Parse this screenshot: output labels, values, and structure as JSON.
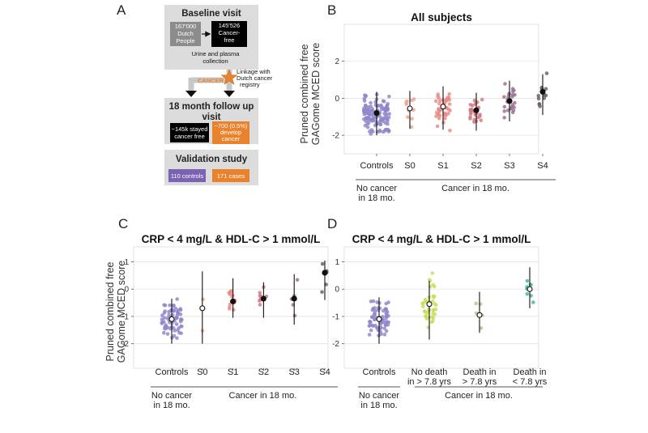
{
  "panel_letters": {
    "a": "A",
    "b": "B",
    "c": "C",
    "d": "D"
  },
  "flowchart": {
    "baseline_title": "Baseline visit",
    "dutch_people": [
      "167'000",
      "Dutch",
      "People"
    ],
    "cancer_free": [
      "145'526",
      "Cancer-",
      "free"
    ],
    "collection": [
      "Urine and plasma",
      "collection"
    ],
    "cancer_label": "CANCER",
    "linkage": [
      "Linkage with",
      "Dutch cancer",
      "registry"
    ],
    "followup_title": [
      "18 month follow up",
      "visit"
    ],
    "stayed_free": [
      "~145k stayed",
      "cancer free"
    ],
    "develop_cancer": [
      "~700 (0.5%)",
      "develop",
      "cancer"
    ],
    "validation_title": "Validation study",
    "controls_box": "110 controls",
    "cases_box": "171 cases",
    "colors": {
      "grey_box": "#d9d9d9",
      "black_box": "#000000",
      "orange": "#e8822d",
      "purple": "#7b62b3",
      "star": "#e8822d"
    }
  },
  "y_axis_label": [
    "Pruned combined free",
    "GAGome MCED score"
  ],
  "chart_data": [
    {
      "panel": "B",
      "type": "scatter",
      "title": "All subjects",
      "ylim": [
        -3,
        4
      ],
      "yticks": [
        -2,
        0,
        2
      ],
      "ylabel": "Pruned combined free GAGome MCED score",
      "categories": [
        "Controls",
        "S0",
        "S1",
        "S2",
        "S3",
        "S4"
      ],
      "colors": [
        "#8f86c9",
        "#f1a48f",
        "#ec8a86",
        "#ce7a80",
        "#9a7190",
        "#6b5a6b"
      ],
      "medians": [
        -0.8,
        -0.55,
        -0.45,
        -0.65,
        -0.15,
        0.35
      ],
      "iqr_low": [
        -2.0,
        -1.65,
        -1.7,
        -1.75,
        -1.25,
        -0.9
      ],
      "iqr_high": [
        0.35,
        0.4,
        0.65,
        0.3,
        0.95,
        1.3
      ],
      "open_median": [
        false,
        true,
        true,
        false,
        false,
        false
      ],
      "groups": [
        {
          "label": "No cancer in 18 mo.",
          "lines": [
            "No cancer",
            "in 18 mo."
          ],
          "span": [
            0,
            0
          ]
        },
        {
          "label": "Cancer in 18 mo.",
          "lines": [
            "Cancer in 18 mo."
          ],
          "span": [
            1,
            5
          ]
        }
      ]
    },
    {
      "panel": "C",
      "type": "scatter",
      "title": "CRP < 4 mg/L & HDL-C > 1 mmol/L",
      "ylim": [
        -2.9,
        1.55
      ],
      "yticks": [
        -2,
        -1,
        0,
        1
      ],
      "ylabel": "Pruned combined free GAGome MCED score",
      "categories": [
        "Controls",
        "S0",
        "S1",
        "S2",
        "S3",
        "S4"
      ],
      "colors": [
        "#8f86c9",
        "#f1a48f",
        "#ec8a86",
        "#ce7a80",
        "#9a7190",
        "#6b5a6b"
      ],
      "medians": [
        -1.1,
        -0.7,
        -0.45,
        -0.35,
        -0.35,
        0.6
      ],
      "iqr_low": [
        -2.0,
        -2.0,
        -1.05,
        -1.05,
        -1.3,
        -0.4
      ],
      "iqr_high": [
        -0.35,
        0.65,
        0.4,
        0.25,
        0.55,
        1.05
      ],
      "open_median": [
        true,
        true,
        false,
        false,
        false,
        false
      ],
      "groups": [
        {
          "label": "No cancer in 18 mo.",
          "lines": [
            "No cancer",
            "in 18 mo."
          ],
          "span": [
            0,
            0
          ]
        },
        {
          "label": "Cancer in 18 mo.",
          "lines": [
            "Cancer in 18 mo."
          ],
          "span": [
            1,
            5
          ]
        }
      ]
    },
    {
      "panel": "D",
      "type": "scatter",
      "title": "CRP < 4 mg/L & HDL-C > 1 mmol/L",
      "ylim": [
        -2.9,
        1.55
      ],
      "yticks": [
        -2,
        -1,
        0,
        1
      ],
      "ylabel": "",
      "categories": [
        "Controls",
        "No death in > 7.8 yrs",
        "Death in > 7.8 yrs",
        "Death in < 7.8 yrs"
      ],
      "category_lines": [
        [
          "Controls"
        ],
        [
          "No death",
          "in > 7.8 yrs"
        ],
        [
          "Death in",
          "> 7.8 yrs"
        ],
        [
          "Death in",
          "< 7.8 yrs"
        ]
      ],
      "colors": [
        "#8f86c9",
        "#c9dc5c",
        "#a7c98a",
        "#4bb59a"
      ],
      "medians": [
        -1.1,
        -0.55,
        -0.95,
        0.0
      ],
      "iqr_low": [
        -2.0,
        -1.85,
        -1.6,
        -0.7
      ],
      "iqr_high": [
        -0.3,
        0.3,
        -0.1,
        0.8
      ],
      "open_median": [
        true,
        true,
        true,
        true
      ],
      "groups": [
        {
          "label": "No cancer in 18 mo.",
          "lines": [
            "No cancer",
            "in 18 mo."
          ],
          "span": [
            0,
            0
          ]
        },
        {
          "label": "Cancer in 18 mo.",
          "lines": [
            "Cancer in 18 mo."
          ],
          "span": [
            1,
            3
          ]
        }
      ]
    }
  ]
}
